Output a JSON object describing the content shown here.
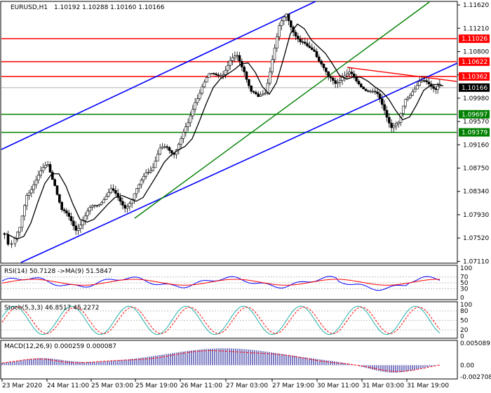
{
  "chart_data": {
    "type": "candlestick",
    "symbol": "EURUSD,H1",
    "ohlc_header": "1.10192 1.10288 1.10160 1.10166",
    "main": {
      "ylim": [
        1.0709,
        1.1167
      ],
      "y_ticks": [
        "1.11620",
        "1.11210",
        "1.10800",
        "1.10390",
        "1.09980",
        "1.09570",
        "1.09160",
        "1.08750",
        "1.08340",
        "1.07930",
        "1.07520",
        "1.07110"
      ],
      "x_ticks": [
        "23 Mar 2020",
        "24 Mar 11:00",
        "25 Mar 03:00",
        "25 Mar 19:00",
        "26 Mar 11:00",
        "27 Mar 03:00",
        "27 Mar 19:00",
        "30 Mar 11:00",
        "31 Mar 03:00",
        "31 Mar 19:00"
      ],
      "resistance_levels": [
        "1.11026",
        "1.10622",
        "1.10362"
      ],
      "support_levels": [
        "1.09697",
        "1.09379"
      ],
      "current_price": "1.10166",
      "colors": {
        "resistance": "#ff0000",
        "support": "#008000",
        "channel": "#0000ff",
        "trend": "#008000",
        "ma": "#000000",
        "candle": "#000000"
      }
    },
    "rsi": {
      "header": "RSI(14) 50.7128  ->MA(9) 51.5847",
      "value": 50.7128,
      "ma": 51.5847,
      "levels": [
        "100",
        "70",
        "50",
        "30",
        "0"
      ],
      "colors": {
        "rsi": "#0000ff",
        "ma": "#ff0000"
      }
    },
    "stoch": {
      "header": "Stoch(5,3,3) 46.8517 45.2272",
      "main": 46.8517,
      "signal": 45.2272,
      "levels": [
        "100",
        "80",
        "50",
        "20",
        "0"
      ],
      "colors": {
        "main": "#20b2aa",
        "signal": "#ff0000"
      }
    },
    "macd": {
      "header": "MACD(12,26,9) 0.000259 0.000087",
      "main": 0.000259,
      "signal": 8.7e-05,
      "levels": [
        "0.005089",
        "0.00",
        "-0.002708"
      ],
      "colors": {
        "hist": "#00008b",
        "signal": "#ff0000"
      }
    }
  }
}
